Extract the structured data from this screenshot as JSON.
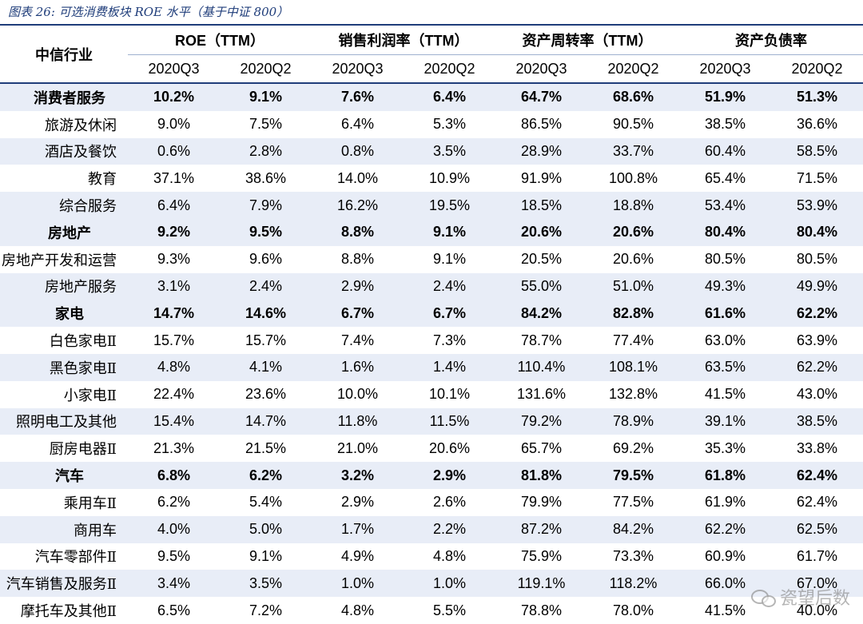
{
  "caption": "图表 26:  可选消费板块 ROE 水平（基于中证 800）",
  "header": {
    "industry_label": "中信行业",
    "groups": [
      "ROE（TTM）",
      "销售利润率（TTM）",
      "资产周转率（TTM）",
      "资产负债率"
    ],
    "periods": [
      "2020Q3",
      "2020Q2"
    ]
  },
  "rows": [
    {
      "name": "消费者服务",
      "type": "main",
      "values": [
        "10.2%",
        "9.1%",
        "7.6%",
        "6.4%",
        "64.7%",
        "68.6%",
        "51.9%",
        "51.3%"
      ]
    },
    {
      "name": "旅游及休闲",
      "type": "sub",
      "values": [
        "9.0%",
        "7.5%",
        "6.4%",
        "5.3%",
        "86.5%",
        "90.5%",
        "38.5%",
        "36.6%"
      ]
    },
    {
      "name": "酒店及餐饮",
      "type": "sub",
      "values": [
        "0.6%",
        "2.8%",
        "0.8%",
        "3.5%",
        "28.9%",
        "33.7%",
        "60.4%",
        "58.5%"
      ]
    },
    {
      "name": "教育",
      "type": "sub",
      "values": [
        "37.1%",
        "38.6%",
        "14.0%",
        "10.9%",
        "91.9%",
        "100.8%",
        "65.4%",
        "71.5%"
      ]
    },
    {
      "name": "综合服务",
      "type": "sub",
      "values": [
        "6.4%",
        "7.9%",
        "16.2%",
        "19.5%",
        "18.5%",
        "18.8%",
        "53.4%",
        "53.9%"
      ]
    },
    {
      "name": "房地产",
      "type": "main",
      "values": [
        "9.2%",
        "9.5%",
        "8.8%",
        "9.1%",
        "20.6%",
        "20.6%",
        "80.4%",
        "80.4%"
      ]
    },
    {
      "name": "房地产开发和运营",
      "type": "sub",
      "values": [
        "9.3%",
        "9.6%",
        "8.8%",
        "9.1%",
        "20.5%",
        "20.6%",
        "80.5%",
        "80.5%"
      ]
    },
    {
      "name": "房地产服务",
      "type": "sub",
      "values": [
        "3.1%",
        "2.4%",
        "2.9%",
        "2.4%",
        "55.0%",
        "51.0%",
        "49.3%",
        "49.9%"
      ]
    },
    {
      "name": "家电",
      "type": "main",
      "values": [
        "14.7%",
        "14.6%",
        "6.7%",
        "6.7%",
        "84.2%",
        "82.8%",
        "61.6%",
        "62.2%"
      ]
    },
    {
      "name": "白色家电Ⅱ",
      "type": "sub",
      "values": [
        "15.7%",
        "15.7%",
        "7.4%",
        "7.3%",
        "78.7%",
        "77.4%",
        "63.0%",
        "63.9%"
      ]
    },
    {
      "name": "黑色家电Ⅱ",
      "type": "sub",
      "values": [
        "4.8%",
        "4.1%",
        "1.6%",
        "1.4%",
        "110.4%",
        "108.1%",
        "63.5%",
        "62.2%"
      ]
    },
    {
      "name": "小家电Ⅱ",
      "type": "sub",
      "values": [
        "22.4%",
        "23.6%",
        "10.0%",
        "10.1%",
        "131.6%",
        "132.8%",
        "41.5%",
        "43.0%"
      ]
    },
    {
      "name": "照明电工及其他",
      "type": "sub",
      "values": [
        "15.4%",
        "14.7%",
        "11.8%",
        "11.5%",
        "79.2%",
        "78.9%",
        "39.1%",
        "38.5%"
      ]
    },
    {
      "name": "厨房电器Ⅱ",
      "type": "sub",
      "values": [
        "21.3%",
        "21.5%",
        "21.0%",
        "20.6%",
        "65.7%",
        "69.2%",
        "35.3%",
        "33.8%"
      ]
    },
    {
      "name": "汽车",
      "type": "main",
      "values": [
        "6.8%",
        "6.2%",
        "3.2%",
        "2.9%",
        "81.8%",
        "79.5%",
        "61.8%",
        "62.4%"
      ]
    },
    {
      "name": "乘用车Ⅱ",
      "type": "sub",
      "values": [
        "6.2%",
        "5.4%",
        "2.9%",
        "2.6%",
        "79.9%",
        "77.5%",
        "61.9%",
        "62.4%"
      ]
    },
    {
      "name": "商用车",
      "type": "sub",
      "values": [
        "4.0%",
        "5.0%",
        "1.7%",
        "2.2%",
        "87.2%",
        "84.2%",
        "62.2%",
        "62.5%"
      ]
    },
    {
      "name": "汽车零部件Ⅱ",
      "type": "sub",
      "values": [
        "9.5%",
        "9.1%",
        "4.9%",
        "4.8%",
        "75.9%",
        "73.3%",
        "60.9%",
        "61.7%"
      ]
    },
    {
      "name": "汽车销售及服务Ⅱ",
      "type": "sub",
      "values": [
        "3.4%",
        "3.5%",
        "1.0%",
        "1.0%",
        "119.1%",
        "118.2%",
        "66.0%",
        "67.0%"
      ]
    },
    {
      "name": "摩托车及其他Ⅱ",
      "type": "sub",
      "values": [
        "6.5%",
        "7.2%",
        "4.8%",
        "5.5%",
        "78.8%",
        "78.0%",
        "41.5%",
        "40.0%"
      ]
    }
  ],
  "watermark": "瓷望后数"
}
